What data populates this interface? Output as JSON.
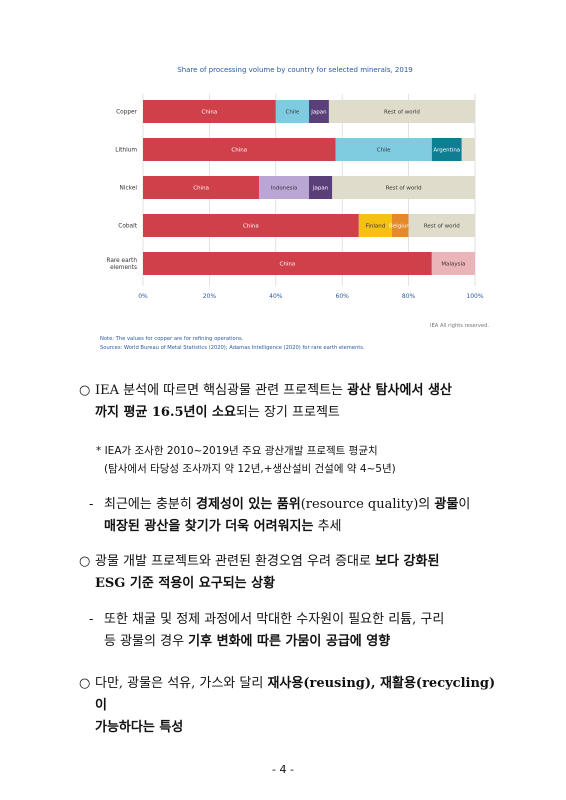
{
  "chart_data": {
    "type": "bar",
    "orientation": "horizontal",
    "stacked": true,
    "title": "Share of processing volume by country for selected minerals, 2019",
    "categories": [
      "Copper",
      "Lithium",
      "Nickel",
      "Cobalt",
      "Rare earth elements"
    ],
    "xlim": [
      0,
      100
    ],
    "x_ticks": [
      "0%",
      "20%",
      "40%",
      "60%",
      "80%",
      "100%"
    ],
    "grid": true,
    "rows": [
      {
        "category": "Copper",
        "segments": [
          {
            "label": "China",
            "value": 40,
            "color": "#d0404a"
          },
          {
            "label": "Chile",
            "value": 10,
            "color": "#7fcbe0"
          },
          {
            "label": "Japan",
            "value": 6,
            "color": "#5a3f7a"
          },
          {
            "label": "Rest of world",
            "value": 44,
            "color": "#e0dccb"
          }
        ]
      },
      {
        "category": "Lithium",
        "segments": [
          {
            "label": "China",
            "value": 58,
            "color": "#d0404a"
          },
          {
            "label": "Chile",
            "value": 29,
            "color": "#7fcbe0"
          },
          {
            "label": "Argentina",
            "value": 9,
            "color": "#0e7f92"
          },
          {
            "label": "",
            "value": 4,
            "color": "#e0dccb"
          }
        ]
      },
      {
        "category": "Nickel",
        "segments": [
          {
            "label": "China",
            "value": 35,
            "color": "#d0404a"
          },
          {
            "label": "Indonesia",
            "value": 15,
            "color": "#b9a6d4"
          },
          {
            "label": "Japan",
            "value": 7,
            "color": "#5a3f7a"
          },
          {
            "label": "Rest of world",
            "value": 43,
            "color": "#e0dccb"
          }
        ]
      },
      {
        "category": "Cobalt",
        "segments": [
          {
            "label": "China",
            "value": 65,
            "color": "#d0404a"
          },
          {
            "label": "Finland",
            "value": 10,
            "color": "#f5c211"
          },
          {
            "label": "Belgium",
            "value": 5,
            "color": "#e58a2b"
          },
          {
            "label": "Rest of world",
            "value": 20,
            "color": "#e0dccb"
          }
        ]
      },
      {
        "category": "Rare earth elements",
        "segments": [
          {
            "label": "China",
            "value": 87,
            "color": "#d0404a"
          },
          {
            "label": "Malaysia",
            "value": 13,
            "color": "#eab4b8"
          }
        ]
      }
    ]
  },
  "figure": {
    "rights": "IEA All rights reserved.",
    "note": "Note: The values for copper are for refining operations.",
    "sources": "Sources: World Bureau of Metal Statistics (2020); Adamas Intelligence (2020) for rare earth elements."
  },
  "text": {
    "p1_bullet": "○",
    "p1_a": "IEA 분석에 따르면 핵심광물 관련 프로젝트는 ",
    "p1_b": "광산 탐사에서 생산",
    "p1_c": "까지 평균 16.5년이 소요",
    "p1_d": "되는 장기 프로젝트",
    "fn1": "* IEA가 조사한 2010~2019년 주요 광산개발 프로젝트 평균치",
    "fn2": "(탐사에서 타당성 조사까지 약 12년,+생산설비 건설에 약 4~5년)",
    "p2_bullet": "-",
    "p2_a": "최근에는 충분히 ",
    "p2_b": "경제성이 있는 품위",
    "p2_c": "(resource quality)의 ",
    "p2_d": "광물",
    "p2_e": "이",
    "p2_f": "매장된 광산을 찾기가 더욱 어려워지는",
    "p2_g": " 추세",
    "p3_bullet": "○",
    "p3_a": "광물 개발 프로젝트와 관련된 환경오염 우려 증대로 ",
    "p3_b": "보다 강화된",
    "p3_c": "ESG 기준 적용이 요구되는 상황",
    "p4_bullet": "-",
    "p4_a": "또한 채굴 및 정제 과정에서 막대한 수자원이 필요한 리튬, 구리",
    "p4_b": "등 광물의 경우 ",
    "p4_c": "기후 변화에 따른 가뭄이 공급에 영향",
    "p5_bullet": "○",
    "p5_a": "다만, 광물은 석유, 가스와 달리 ",
    "p5_b": "재사용(reusing), 재활용(recycling)이",
    "p5_c": "가능하다는 특성",
    "page": "- 4 -"
  }
}
